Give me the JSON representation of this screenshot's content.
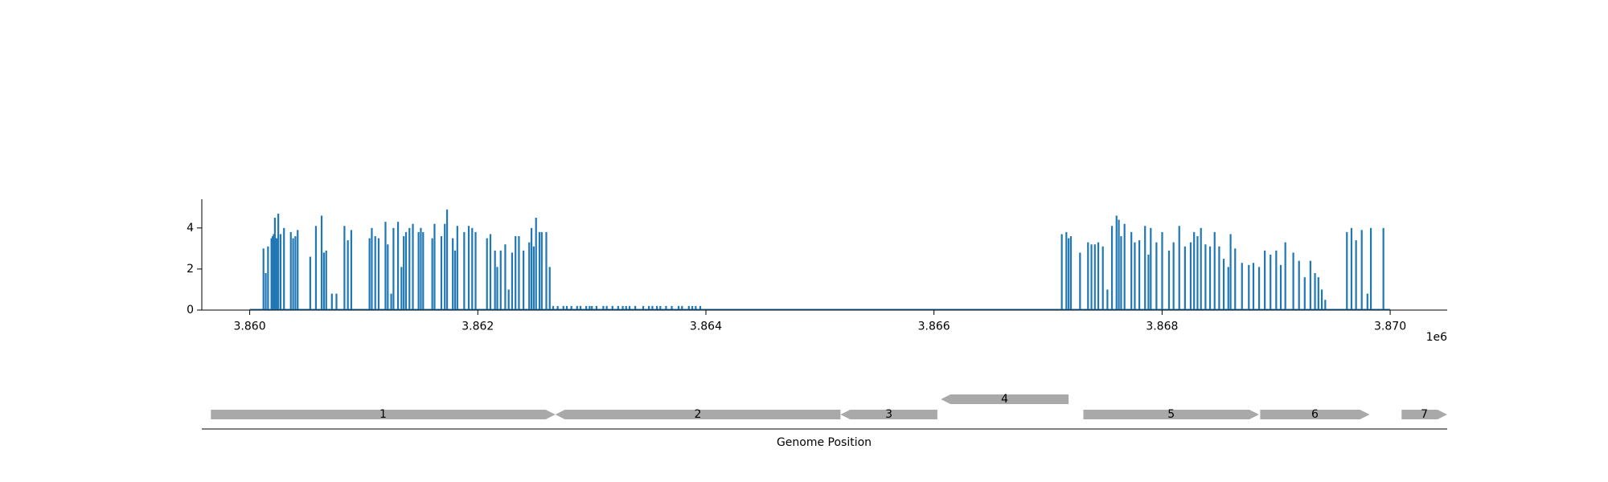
{
  "chart_data": [
    {
      "type": "bar",
      "title": "",
      "xlabel": "",
      "ylabel": "",
      "x_offset_label": "1e6",
      "xlim": [
        3859580,
        3870500
      ],
      "ylim": [
        0,
        5.4
      ],
      "x_ticks": [
        3860000,
        3862000,
        3864000,
        3866000,
        3868000,
        3870000
      ],
      "x_tick_labels": [
        "3.860",
        "3.862",
        "3.864",
        "3.866",
        "3.868",
        "3.870"
      ],
      "y_ticks": [
        0,
        2,
        4
      ],
      "y_tick_labels": [
        "0",
        "2",
        "4"
      ],
      "baseline_range": [
        3860000,
        3870000
      ],
      "bar_color": "#1f77b4",
      "series": [
        {
          "x": [
            3860120,
            3860140,
            3860160,
            3860190,
            3860200,
            3860210,
            3860220,
            3860235,
            3860250,
            3860270,
            3860300,
            3860360,
            3860380,
            3860400,
            3860420,
            3860530,
            3860580,
            3860630,
            3860650,
            3860670,
            3860720,
            3860760,
            3860830,
            3860860,
            3860890,
            3861050,
            3861070,
            3861100,
            3861130,
            3861190,
            3861210,
            3861240,
            3861260,
            3861300,
            3861330,
            3861350,
            3861370,
            3861400,
            3861430,
            3861480,
            3861500,
            3861520,
            3861600,
            3861620,
            3861680,
            3861710,
            3861730,
            3861780,
            3861800,
            3861820,
            3861880,
            3861920,
            3861950,
            3861980,
            3862080,
            3862110,
            3862150,
            3862170,
            3862200,
            3862240,
            3862270,
            3862300,
            3862330,
            3862360,
            3862400,
            3862450,
            3862470,
            3862490,
            3862510,
            3862540,
            3862560,
            3862600,
            3862630,
            3862660,
            3862700,
            3862750,
            3862780,
            3862820,
            3862870,
            3862900,
            3862950,
            3862980,
            3863000,
            3863040,
            3863100,
            3863130,
            3863180,
            3863230,
            3863270,
            3863300,
            3863330,
            3863380,
            3863450,
            3863500,
            3863530,
            3863570,
            3863600,
            3863650,
            3863700,
            3863760,
            3863790,
            3863850,
            3863880,
            3863910,
            3863950
          ],
          "values": [
            3.0,
            1.8,
            3.1,
            3.5,
            3.6,
            3.7,
            4.5,
            3.5,
            4.7,
            3.7,
            4.0,
            3.8,
            3.5,
            3.6,
            3.9,
            2.6,
            4.1,
            4.6,
            2.8,
            2.9,
            0.8,
            0.8,
            4.1,
            3.4,
            3.9,
            3.5,
            4.0,
            3.6,
            3.5,
            4.3,
            3.2,
            0.8,
            4.0,
            4.3,
            2.1,
            3.6,
            3.8,
            4.0,
            4.2,
            3.8,
            4.0,
            3.8,
            3.5,
            4.2,
            3.6,
            4.2,
            4.9,
            3.5,
            2.9,
            4.1,
            3.8,
            4.1,
            4.0,
            3.8,
            3.5,
            3.7,
            2.9,
            2.1,
            2.9,
            3.2,
            1.0,
            2.8,
            3.6,
            3.6,
            2.9,
            3.3,
            4.0,
            3.1,
            4.5,
            3.8,
            3.8,
            3.8,
            2.1,
            0.2,
            0.2,
            0.2,
            0.2,
            0.2,
            0.2,
            0.2,
            0.2,
            0.2,
            0.2,
            0.2,
            0.2,
            0.2,
            0.2,
            0.2,
            0.2,
            0.2,
            0.2,
            0.2,
            0.2,
            0.2,
            0.2,
            0.2,
            0.2,
            0.2,
            0.2,
            0.2,
            0.2,
            0.2,
            0.2,
            0.2,
            0.2
          ]
        },
        {
          "x": [
            3867120,
            3867160,
            3867180,
            3867200,
            3867280,
            3867350,
            3867380,
            3867410,
            3867440,
            3867480,
            3867520,
            3867560,
            3867600,
            3867620,
            3867640,
            3867670,
            3867730,
            3867760,
            3867800,
            3867850,
            3867880,
            3867900,
            3867950,
            3868000,
            3868060,
            3868100,
            3868150,
            3868200,
            3868250,
            3868280,
            3868310,
            3868340,
            3868380,
            3868420,
            3868460,
            3868500,
            3868540,
            3868580,
            3868600,
            3868640,
            3868700,
            3868760,
            3868800,
            3868850,
            3868900,
            3868950,
            3869000,
            3869040,
            3869080,
            3869150,
            3869200,
            3869250,
            3869300,
            3869340,
            3869370,
            3869400,
            3869430,
            3869620,
            3869660,
            3869700,
            3869750,
            3869800,
            3869830,
            3869940
          ],
          "values": [
            3.7,
            3.8,
            3.5,
            3.6,
            2.8,
            3.3,
            3.2,
            3.2,
            3.3,
            3.1,
            1.0,
            4.1,
            4.6,
            4.4,
            3.6,
            4.2,
            3.8,
            3.3,
            3.4,
            4.1,
            2.7,
            4.0,
            3.3,
            3.8,
            2.9,
            3.3,
            4.1,
            3.1,
            3.3,
            3.8,
            3.6,
            4.0,
            3.2,
            3.1,
            3.8,
            3.1,
            2.5,
            2.1,
            3.7,
            3.0,
            2.3,
            2.2,
            2.3,
            2.1,
            2.9,
            2.7,
            2.9,
            2.2,
            3.3,
            2.8,
            2.4,
            1.6,
            2.4,
            1.8,
            1.6,
            1.0,
            0.5,
            3.8,
            4.0,
            3.4,
            3.9,
            0.8,
            4.0,
            4.0
          ]
        }
      ]
    },
    {
      "type": "gene_track",
      "xlabel": "Genome Position",
      "xlim": [
        3859580,
        3870500
      ],
      "features": [
        {
          "label": "1",
          "start": 3859660,
          "end": 3862680,
          "strand": 1,
          "row": 0
        },
        {
          "label": "2",
          "start": 3862680,
          "end": 3865180,
          "strand": -1,
          "row": 0
        },
        {
          "label": "3",
          "start": 3865180,
          "end": 3866030,
          "strand": -1,
          "row": 0
        },
        {
          "label": "4",
          "start": 3866060,
          "end": 3867180,
          "strand": -1,
          "row": 1
        },
        {
          "label": "5",
          "start": 3867310,
          "end": 3868850,
          "strand": 1,
          "row": 0
        },
        {
          "label": "6",
          "start": 3868860,
          "end": 3869820,
          "strand": 1,
          "row": 0
        },
        {
          "label": "7",
          "start": 3870100,
          "end": 3870500,
          "strand": 1,
          "row": 0
        }
      ],
      "feature_color": "#a9a9a9"
    }
  ]
}
